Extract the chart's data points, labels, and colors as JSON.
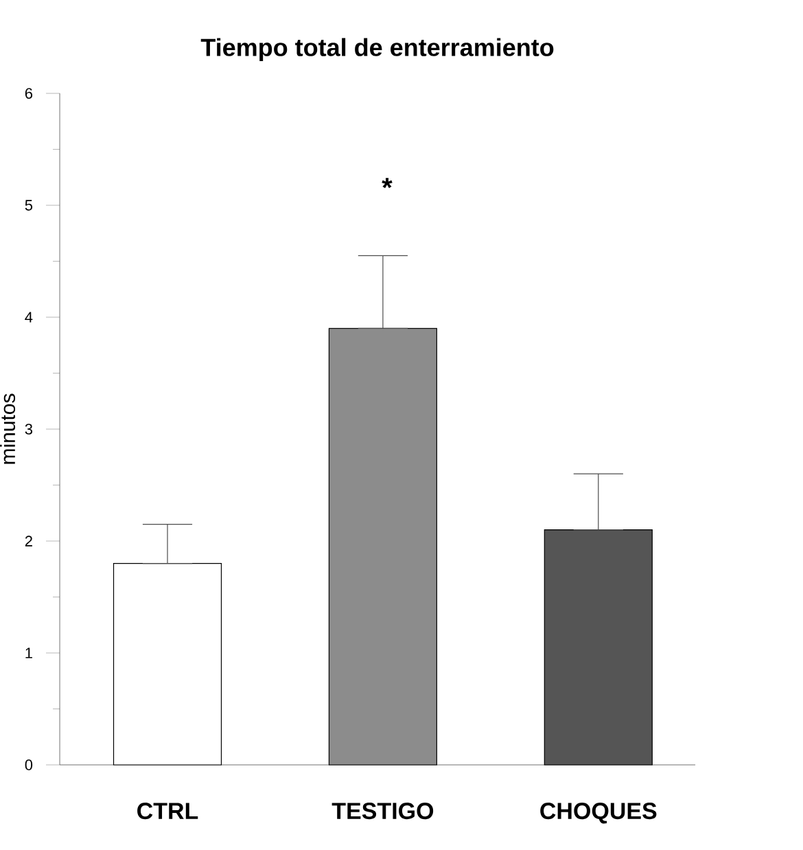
{
  "chart_data": {
    "type": "bar",
    "title": "Tiempo total de enterramiento",
    "ylabel": "minutos",
    "categories": [
      "CTRL",
      "TESTIGO",
      "CHOQUES"
    ],
    "values": [
      1.8,
      3.9,
      2.1
    ],
    "errors": [
      [
        1.8,
        2.15
      ],
      [
        3.9,
        4.55
      ],
      [
        2.1,
        2.6
      ]
    ],
    "colors": [
      "#ffffff",
      "#8c8c8c",
      "#555555"
    ],
    "ylim": [
      0,
      6
    ],
    "yticks": [
      0,
      1,
      2,
      3,
      4,
      5,
      6
    ],
    "annotations": [
      "*"
    ]
  }
}
